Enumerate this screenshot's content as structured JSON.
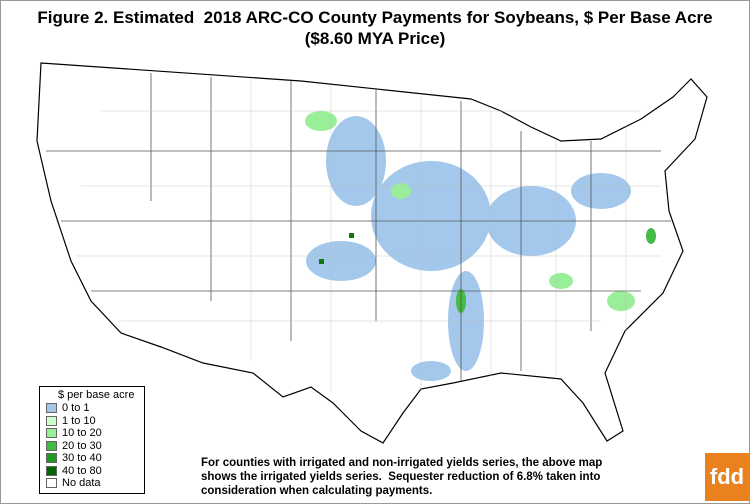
{
  "title_lines": [
    "Figure 2. Estimated  2018 ARC-CO County Payments for Soybeans, $ Per Base Acre",
    "($8.60 MYA Price)"
  ],
  "legend": {
    "title": "$ per base acre",
    "items": [
      {
        "label": "0 to 1",
        "color": "#a3c8ec"
      },
      {
        "label": "1 to 10",
        "color": "#ccffcc"
      },
      {
        "label": "10 to 20",
        "color": "#99ee99"
      },
      {
        "label": "20 to 30",
        "color": "#44bb44"
      },
      {
        "label": "30 to 40",
        "color": "#229922"
      },
      {
        "label": "40 to 80",
        "color": "#006600"
      },
      {
        "label": "No data",
        "color": "#ffffff"
      }
    ]
  },
  "note_lines": [
    "For counties with irrigated and non-irrigated yields series, the above map",
    "shows the irrigated yields series.  Sequester reduction of 6.8% taken into",
    "consideration when calculating payments."
  ],
  "logo": "fdd"
}
